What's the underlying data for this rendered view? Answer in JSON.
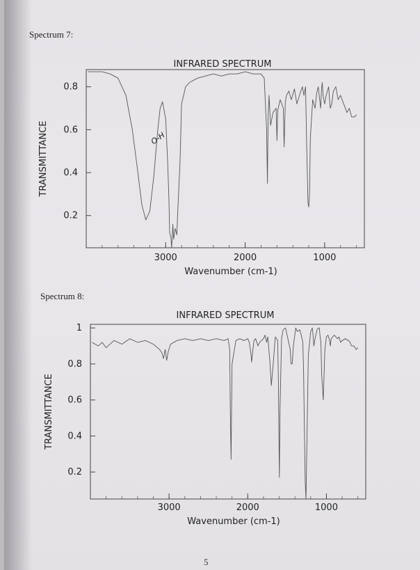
{
  "page": {
    "spectrum7_label": "Spectrum 7:",
    "spectrum8_label": "Spectrum 8:",
    "page_number": "5"
  },
  "chart_data": [
    {
      "type": "line",
      "title": "INFRARED SPECTRUM",
      "xlabel": "Wavenumber (cm-1)",
      "ylabel": "TRANSMITTANCE",
      "xticks": [
        "3000",
        "2000",
        "1000"
      ],
      "yticks": [
        "0.8",
        "0.6",
        "0.4",
        "0.2"
      ],
      "xlim": [
        4000,
        500
      ],
      "ylim": [
        0.05,
        0.88
      ],
      "x_reversed": true,
      "annotations": [
        {
          "text": "O-H",
          "x": 3080,
          "y": 0.55
        }
      ],
      "series": [
        {
          "x": [
            3980,
            3880,
            3800,
            3700,
            3600,
            3500,
            3420,
            3350,
            3300,
            3250,
            3200,
            3150,
            3100,
            3070,
            3040,
            3000,
            2975,
            2960,
            2950,
            2935,
            2925,
            2910,
            2900,
            2880,
            2860,
            2850,
            2820,
            2800,
            2750,
            2700,
            2600,
            2500,
            2400,
            2300,
            2200,
            2100,
            2000,
            1900,
            1800,
            1760,
            1730,
            1720,
            1712,
            1700,
            1680,
            1650,
            1610,
            1600,
            1590,
            1560,
            1520,
            1510,
            1495,
            1480,
            1450,
            1420,
            1380,
            1350,
            1300,
            1280,
            1260,
            1240,
            1225,
            1210,
            1200,
            1190,
            1180,
            1150,
            1120,
            1100,
            1080,
            1050,
            1040,
            1030,
            1020,
            1000,
            980,
            950,
            930,
            910,
            890,
            860,
            830,
            800,
            760,
            720,
            690,
            660,
            620,
            600
          ],
          "y": [
            0.87,
            0.87,
            0.87,
            0.86,
            0.84,
            0.76,
            0.6,
            0.4,
            0.25,
            0.18,
            0.22,
            0.38,
            0.6,
            0.7,
            0.73,
            0.65,
            0.45,
            0.28,
            0.12,
            0.1,
            0.05,
            0.16,
            0.09,
            0.14,
            0.11,
            0.2,
            0.45,
            0.72,
            0.8,
            0.82,
            0.84,
            0.85,
            0.86,
            0.85,
            0.86,
            0.86,
            0.87,
            0.86,
            0.86,
            0.84,
            0.6,
            0.35,
            0.65,
            0.76,
            0.62,
            0.68,
            0.7,
            0.55,
            0.69,
            0.74,
            0.7,
            0.52,
            0.73,
            0.76,
            0.78,
            0.74,
            0.79,
            0.72,
            0.78,
            0.8,
            0.76,
            0.8,
            0.52,
            0.26,
            0.24,
            0.3,
            0.56,
            0.74,
            0.7,
            0.77,
            0.8,
            0.7,
            0.78,
            0.82,
            0.76,
            0.72,
            0.76,
            0.8,
            0.7,
            0.72,
            0.78,
            0.8,
            0.74,
            0.76,
            0.72,
            0.68,
            0.7,
            0.66,
            0.66,
            0.67
          ]
        }
      ]
    },
    {
      "type": "line",
      "title": "INFRARED SPECTRUM",
      "xlabel": "Wavenumber (cm-1)",
      "ylabel": "TRANSMITTANCE",
      "xticks": [
        "3000",
        "2000",
        "1000"
      ],
      "yticks": [
        "1",
        "0.8",
        "0.6",
        "0.4",
        "0.2"
      ],
      "xlim": [
        4000,
        500
      ],
      "ylim": [
        0.05,
        1.02
      ],
      "x_reversed": true,
      "series": [
        {
          "x": [
            3980,
            3900,
            3850,
            3800,
            3700,
            3600,
            3500,
            3400,
            3300,
            3200,
            3120,
            3090,
            3070,
            3050,
            3030,
            3010,
            2980,
            2900,
            2800,
            2700,
            2600,
            2500,
            2400,
            2300,
            2250,
            2230,
            2222,
            2212,
            2200,
            2150,
            2100,
            2050,
            2000,
            1980,
            1960,
            1950,
            1940,
            1920,
            1900,
            1870,
            1850,
            1800,
            1780,
            1760,
            1745,
            1720,
            1700,
            1680,
            1650,
            1620,
            1610,
            1605,
            1598,
            1590,
            1570,
            1550,
            1520,
            1500,
            1480,
            1460,
            1450,
            1445,
            1435,
            1420,
            1390,
            1370,
            1340,
            1320,
            1300,
            1290,
            1280,
            1270,
            1260,
            1250,
            1230,
            1200,
            1180,
            1170,
            1160,
            1140,
            1120,
            1100,
            1090,
            1080,
            1070,
            1060,
            1040,
            1020,
            1000,
            980,
            960,
            950,
            940,
            900,
            860,
            840,
            820,
            800,
            760,
            720,
            700,
            680,
            650,
            620,
            600
          ],
          "y": [
            0.92,
            0.9,
            0.92,
            0.89,
            0.93,
            0.91,
            0.94,
            0.92,
            0.93,
            0.91,
            0.88,
            0.86,
            0.83,
            0.88,
            0.82,
            0.87,
            0.91,
            0.93,
            0.94,
            0.93,
            0.94,
            0.93,
            0.94,
            0.93,
            0.94,
            0.88,
            0.55,
            0.27,
            0.8,
            0.93,
            0.94,
            0.93,
            0.94,
            0.92,
            0.86,
            0.81,
            0.86,
            0.93,
            0.94,
            0.9,
            0.92,
            0.94,
            0.96,
            0.92,
            0.95,
            0.82,
            0.68,
            0.78,
            0.95,
            0.93,
            0.7,
            0.45,
            0.17,
            0.55,
            0.94,
            0.99,
            1.0,
            0.96,
            0.92,
            0.88,
            0.8,
            0.8,
            0.8,
            0.9,
            1.0,
            0.98,
            0.99,
            0.96,
            0.92,
            0.76,
            0.45,
            0.15,
            0.05,
            0.3,
            0.85,
            0.98,
            1.0,
            0.96,
            0.9,
            0.95,
            0.99,
            1.0,
            1.0,
            0.95,
            0.92,
            0.74,
            0.6,
            0.88,
            0.95,
            0.96,
            0.93,
            0.9,
            0.94,
            0.96,
            0.94,
            0.95,
            0.92,
            0.93,
            0.94,
            0.93,
            0.92,
            0.9,
            0.9,
            0.88,
            0.89
          ]
        }
      ]
    }
  ]
}
